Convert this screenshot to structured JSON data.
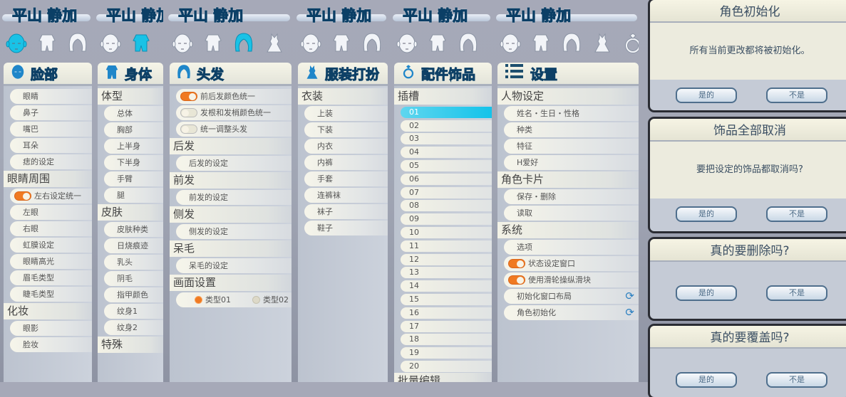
{
  "character_name": "平山 静加",
  "columns": [
    {
      "banner": "平山 静加",
      "tabs": [
        {
          "icon": "face-icon",
          "active": true
        },
        {
          "icon": "body-icon"
        },
        {
          "icon": "hair-icon"
        }
      ],
      "panel": {
        "title": "脸部",
        "icon": "face-icon",
        "rows": [
          {
            "type": "item",
            "label": "眼睛"
          },
          {
            "type": "item",
            "label": "鼻子"
          },
          {
            "type": "item",
            "label": "嘴巴"
          },
          {
            "type": "item",
            "label": "耳朵"
          },
          {
            "type": "item",
            "label": "痣的设定"
          },
          {
            "type": "section",
            "label": "眼睛周围"
          },
          {
            "type": "toggle",
            "label": "左右设定统一",
            "on": true
          },
          {
            "type": "item",
            "label": "左眼"
          },
          {
            "type": "item",
            "label": "右眼"
          },
          {
            "type": "item",
            "label": "虹膜设定"
          },
          {
            "type": "item",
            "label": "眼睛高光"
          },
          {
            "type": "item",
            "label": "眉毛类型"
          },
          {
            "type": "item",
            "label": "睫毛类型"
          },
          {
            "type": "section",
            "label": "化妆"
          },
          {
            "type": "item",
            "label": "眼影"
          },
          {
            "type": "item",
            "label": "脸妆"
          }
        ]
      }
    },
    {
      "banner": "平山 静加",
      "tabs": [
        {
          "icon": "face-icon"
        },
        {
          "icon": "body-icon",
          "active": true
        }
      ],
      "panel": {
        "title": "身体",
        "icon": "body-icon",
        "rows": [
          {
            "type": "section",
            "label": "体型"
          },
          {
            "type": "item",
            "label": "总体"
          },
          {
            "type": "item",
            "label": "胸部"
          },
          {
            "type": "item",
            "label": "上半身"
          },
          {
            "type": "item",
            "label": "下半身"
          },
          {
            "type": "item",
            "label": "手臂"
          },
          {
            "type": "item",
            "label": "腿"
          },
          {
            "type": "section",
            "label": "皮肤"
          },
          {
            "type": "item",
            "label": "皮肤种类"
          },
          {
            "type": "item",
            "label": "日烧痕迹"
          },
          {
            "type": "item",
            "label": "乳头"
          },
          {
            "type": "item",
            "label": "阴毛"
          },
          {
            "type": "item",
            "label": "指甲颜色"
          },
          {
            "type": "item",
            "label": "纹身1"
          },
          {
            "type": "item",
            "label": "纹身2"
          },
          {
            "type": "section",
            "label": "特殊"
          }
        ]
      }
    },
    {
      "banner": "平山 静加",
      "tabs": [
        {
          "icon": "face-icon"
        },
        {
          "icon": "body-icon"
        },
        {
          "icon": "hair-icon",
          "active": true
        },
        {
          "icon": "dress-icon"
        }
      ],
      "panel": {
        "title": "头发",
        "icon": "hair-icon",
        "rows": [
          {
            "type": "toggle",
            "label": "前后发颜色统一",
            "on": true
          },
          {
            "type": "toggle",
            "label": "发根和发梢颜色统一",
            "on": false
          },
          {
            "type": "toggle",
            "label": "统一调整头发",
            "on": false
          },
          {
            "type": "section",
            "label": "后发"
          },
          {
            "type": "item",
            "label": "后发的设定"
          },
          {
            "type": "section",
            "label": "前发"
          },
          {
            "type": "item",
            "label": "前发的设定"
          },
          {
            "type": "section",
            "label": "侧发"
          },
          {
            "type": "item",
            "label": "侧发的设定"
          },
          {
            "type": "section",
            "label": "呆毛"
          },
          {
            "type": "item",
            "label": "呆毛的设定"
          },
          {
            "type": "section",
            "label": "画面设置"
          },
          {
            "type": "radio",
            "options": [
              {
                "label": "类型01",
                "on": true
              },
              {
                "label": "类型02",
                "on": false
              }
            ]
          }
        ]
      }
    },
    {
      "banner": "平山 静加",
      "tabs": [
        {
          "icon": "face-icon"
        },
        {
          "icon": "body-icon"
        },
        {
          "icon": "hair-icon"
        }
      ],
      "panel": {
        "title": "服装打扮",
        "icon": "dress-icon",
        "rows": [
          {
            "type": "section",
            "label": "衣装"
          },
          {
            "type": "item",
            "label": "上装"
          },
          {
            "type": "item",
            "label": "下装"
          },
          {
            "type": "item",
            "label": "内衣"
          },
          {
            "type": "item",
            "label": "内裤"
          },
          {
            "type": "item",
            "label": "手套"
          },
          {
            "type": "item",
            "label": "连裤袜"
          },
          {
            "type": "item",
            "label": "袜子"
          },
          {
            "type": "item",
            "label": "鞋子"
          }
        ]
      }
    },
    {
      "banner": "平山 静加",
      "tabs": [
        {
          "icon": "face-icon"
        },
        {
          "icon": "body-icon"
        },
        {
          "icon": "hair-icon"
        }
      ],
      "panel": {
        "title": "配件饰品",
        "icon": "ring-icon",
        "rows": [
          {
            "type": "section",
            "label": "插槽"
          },
          {
            "type": "slot",
            "label": "01",
            "selected": true
          },
          {
            "type": "slot",
            "label": "02"
          },
          {
            "type": "slot",
            "label": "03"
          },
          {
            "type": "slot",
            "label": "04"
          },
          {
            "type": "slot",
            "label": "05"
          },
          {
            "type": "slot",
            "label": "06"
          },
          {
            "type": "slot",
            "label": "07"
          },
          {
            "type": "slot",
            "label": "08"
          },
          {
            "type": "slot",
            "label": "09"
          },
          {
            "type": "slot",
            "label": "10"
          },
          {
            "type": "slot",
            "label": "11"
          },
          {
            "type": "slot",
            "label": "12"
          },
          {
            "type": "slot",
            "label": "13"
          },
          {
            "type": "slot",
            "label": "14"
          },
          {
            "type": "slot",
            "label": "15"
          },
          {
            "type": "slot",
            "label": "16"
          },
          {
            "type": "slot",
            "label": "17"
          },
          {
            "type": "slot",
            "label": "18"
          },
          {
            "type": "slot",
            "label": "19"
          },
          {
            "type": "slot",
            "label": "20"
          },
          {
            "type": "section",
            "label": "批量编辑"
          }
        ]
      }
    },
    {
      "banner": "平山 静加",
      "tabs": [
        {
          "icon": "face-icon"
        },
        {
          "icon": "body-icon"
        },
        {
          "icon": "hair-icon"
        },
        {
          "icon": "dress-icon"
        },
        {
          "icon": "ring-icon"
        }
      ],
      "panel": {
        "title": "设置",
        "icon": "list-icon",
        "rows": [
          {
            "type": "section",
            "label": "人物设定"
          },
          {
            "type": "item",
            "label": "姓名・生日・性格"
          },
          {
            "type": "item",
            "label": "种类"
          },
          {
            "type": "item",
            "label": "特征"
          },
          {
            "type": "item",
            "label": "H爱好"
          },
          {
            "type": "section",
            "label": "角色卡片"
          },
          {
            "type": "item",
            "label": "保存・删除"
          },
          {
            "type": "item",
            "label": "读取"
          },
          {
            "type": "section",
            "label": "系统"
          },
          {
            "type": "item",
            "label": "选项"
          },
          {
            "type": "toggle",
            "label": "状态设定窗口",
            "on": true
          },
          {
            "type": "toggle",
            "label": "使用滑轮操纵滑块",
            "on": true
          },
          {
            "type": "item",
            "label": "初始化窗口布局",
            "refresh": true
          },
          {
            "type": "item",
            "label": "角色初始化",
            "refresh": true
          }
        ]
      }
    }
  ],
  "dialogs": [
    {
      "title": "角色初始化",
      "message": "所有当前更改都将被初始化。",
      "yes": "是的",
      "no": "不是"
    },
    {
      "title": "饰品全部取消",
      "message": "要把设定的饰品都取消吗?",
      "yes": "是的",
      "no": "不是"
    },
    {
      "title": "真的要删除吗?",
      "message": "",
      "yes": "是的",
      "no": "不是"
    },
    {
      "title": "真的要覆盖吗?",
      "message": "",
      "yes": "是的",
      "no": "不是"
    }
  ],
  "colors": {
    "accent": "#2a8fd0",
    "toggle_on": "#f07a22",
    "selected_slot": "#14c3ea",
    "active_tab": "#19c2e6"
  }
}
